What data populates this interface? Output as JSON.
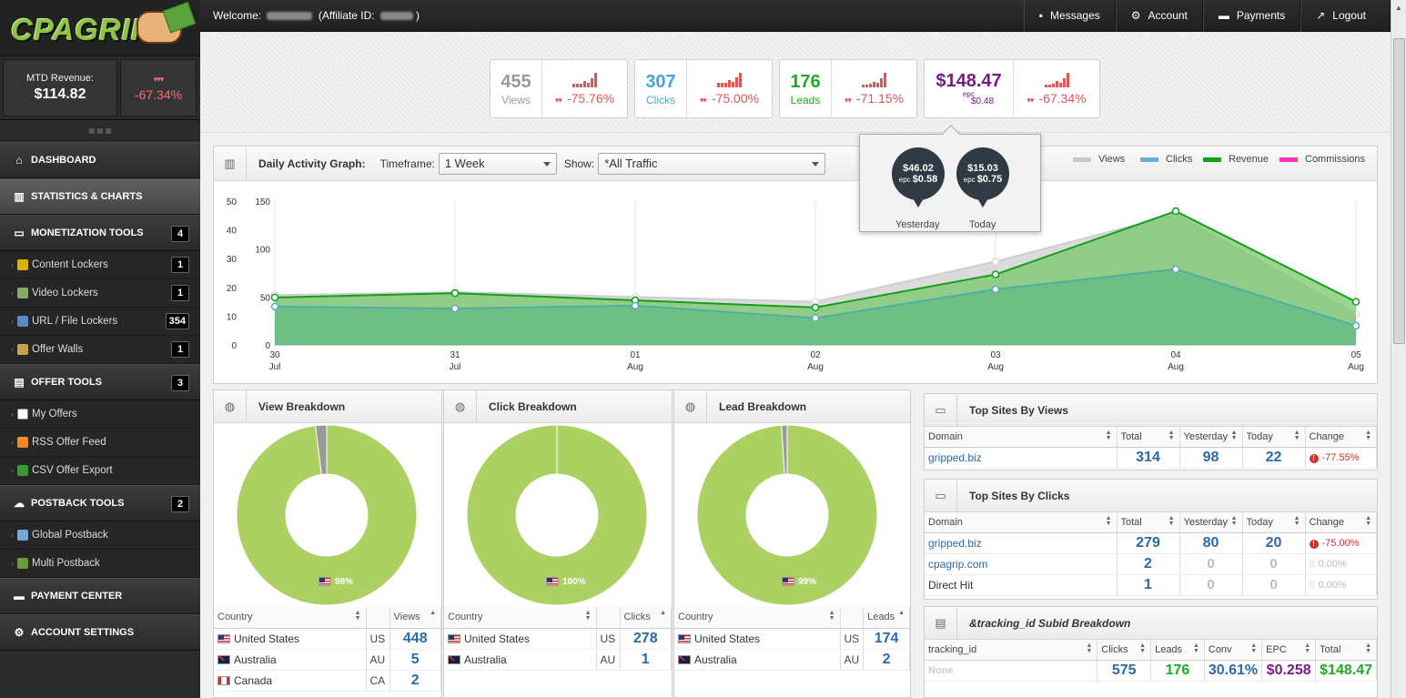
{
  "logo": {
    "text": "CPAGRIP"
  },
  "sidebar": {
    "mtd_label": "MTD Revenue:",
    "mtd_value": "$114.82",
    "mtd_change": "-67.34%",
    "sections": [
      {
        "label": "DASHBOARD",
        "icon": "home-icon"
      },
      {
        "label": "STATISTICS & CHARTS",
        "icon": "bar-chart-icon"
      },
      {
        "label": "MONETIZATION TOOLS",
        "icon": "monitor-icon",
        "badge": "4"
      },
      {
        "label": "OFFER TOOLS",
        "icon": "clipboard-icon",
        "badge": "3"
      },
      {
        "label": "POSTBACK TOOLS",
        "icon": "cloud-icon",
        "badge": "2"
      },
      {
        "label": "PAYMENT CENTER",
        "icon": "money-icon"
      },
      {
        "label": "ACCOUNT SETTINGS",
        "icon": "gear-icon"
      }
    ],
    "monetization_items": [
      {
        "label": "Content Lockers",
        "badge": "1"
      },
      {
        "label": "Video Lockers",
        "badge": "1"
      },
      {
        "label": "URL / File Lockers",
        "badge": "354"
      },
      {
        "label": "Offer Walls",
        "badge": "1"
      }
    ],
    "offer_items": [
      {
        "label": "My Offers"
      },
      {
        "label": "RSS Offer Feed"
      },
      {
        "label": "CSV Offer Export"
      }
    ],
    "postback_items": [
      {
        "label": "Global Postback"
      },
      {
        "label": "Multi Postback"
      }
    ]
  },
  "topbar": {
    "welcome_prefix": "Welcome:",
    "affiliate_label": "(Affiliate ID:",
    "buttons": [
      {
        "label": "Messages",
        "icon": "chat-icon"
      },
      {
        "label": "Account",
        "icon": "gear-icon"
      },
      {
        "label": "Payments",
        "icon": "money-icon"
      },
      {
        "label": "Logout",
        "icon": "logout-icon"
      }
    ]
  },
  "stats": [
    {
      "value": "455",
      "label": "Views",
      "change": "-75.76%",
      "color": "#999999"
    },
    {
      "value": "307",
      "label": "Clicks",
      "change": "-75.00%",
      "color": "#4aa3d8"
    },
    {
      "value": "176",
      "label": "Leads",
      "change": "-71.15%",
      "color": "#22aa22"
    },
    {
      "value": "$148.47",
      "label": "epc",
      "sub": "$0.48",
      "change": "-67.34%",
      "color": "#7a1a8a"
    }
  ],
  "popup": {
    "yesterday": {
      "value": "$46.02",
      "epc_label": "epc",
      "epc": "$0.58",
      "caption": "Yesterday"
    },
    "today": {
      "value": "$15.03",
      "epc_label": "epc",
      "epc": "$0.75",
      "caption": "Today"
    }
  },
  "graph": {
    "title": "Daily Activity Graph:",
    "timeframe_label": "Timeframe:",
    "timeframe_value": "1 Week",
    "show_label": "Show:",
    "show_value": "*All Traffic",
    "legend": [
      {
        "name": "Views",
        "color": "#c8c8c8"
      },
      {
        "name": "Clicks",
        "color": "#6aaed6"
      },
      {
        "name": "Revenue",
        "color": "#11a01a"
      },
      {
        "name": "Commissions",
        "color": "#ff33bb"
      }
    ]
  },
  "chart_data": {
    "type": "area",
    "x": [
      "30 Jul",
      "31 Jul",
      "01 Aug",
      "02 Aug",
      "03 Aug",
      "04 Aug",
      "05 Aug"
    ],
    "x_day": [
      "30",
      "31",
      "01",
      "02",
      "03",
      "04",
      "05"
    ],
    "x_month": [
      "Jul",
      "Jul",
      "Aug",
      "Aug",
      "Aug",
      "Aug",
      "Aug"
    ],
    "y_left_ticks": [
      0,
      10,
      20,
      30,
      40,
      50
    ],
    "y_right_ticks": [
      0,
      50,
      100,
      150
    ],
    "ylim_left": [
      0,
      50
    ],
    "ylim_right": [
      0,
      150
    ],
    "series": [
      {
        "name": "Views",
        "axis": "right",
        "values": [
          52,
          55,
          50,
          45,
          87,
          136,
          32
        ]
      },
      {
        "name": "Clicks",
        "axis": "right",
        "values": [
          40,
          38,
          41,
          28,
          58,
          79,
          20
        ]
      },
      {
        "name": "Revenue",
        "axis": "left",
        "values": [
          16.5,
          18,
          15.5,
          13,
          24.5,
          46.5,
          15
        ]
      }
    ]
  },
  "breakdowns": [
    {
      "title": "View Breakdown",
      "metric": "Views",
      "pct": 98,
      "pct_label": "98%",
      "rows": [
        {
          "country": "United States",
          "flag": "us",
          "code": "US",
          "value": "448"
        },
        {
          "country": "Australia",
          "flag": "au",
          "code": "AU",
          "value": "5"
        },
        {
          "country": "Canada",
          "flag": "ca",
          "code": "CA",
          "value": "2"
        }
      ]
    },
    {
      "title": "Click Breakdown",
      "metric": "Clicks",
      "pct": 100,
      "pct_label": "100%",
      "rows": [
        {
          "country": "United States",
          "flag": "us",
          "code": "US",
          "value": "278"
        },
        {
          "country": "Australia",
          "flag": "au",
          "code": "AU",
          "value": "1"
        }
      ]
    },
    {
      "title": "Lead Breakdown",
      "metric": "Leads",
      "pct": 99,
      "pct_label": "99%",
      "rows": [
        {
          "country": "United States",
          "flag": "us",
          "code": "US",
          "value": "174"
        },
        {
          "country": "Australia",
          "flag": "au",
          "code": "AU",
          "value": "2"
        }
      ]
    }
  ],
  "breakdown_country_header": "Country",
  "top_views": {
    "title": "Top Sites By Views",
    "headers": [
      "Domain",
      "Total",
      "Yesterday",
      "Today",
      "Change"
    ],
    "rows": [
      {
        "domain": "gripped.biz",
        "total": "314",
        "yesterday": "98",
        "today": "22",
        "change": "-77.55%"
      }
    ]
  },
  "top_clicks": {
    "title": "Top Sites By Clicks",
    "headers": [
      "Domain",
      "Total",
      "Yesterday",
      "Today",
      "Change"
    ],
    "rows": [
      {
        "domain": "gripped.biz",
        "total": "279",
        "yesterday": "80",
        "today": "20",
        "change": "-75.00%"
      },
      {
        "domain": "cpagrip.com",
        "total": "2",
        "yesterday": "0",
        "today": "0",
        "change": "0.00%"
      },
      {
        "domain": "Direct Hit",
        "total": "1",
        "yesterday": "0",
        "today": "0",
        "change": "0.00%"
      }
    ]
  },
  "subid": {
    "title": "&tracking_id Subid Breakdown",
    "headers": [
      "tracking_id",
      "Clicks",
      "Leads",
      "Conv",
      "EPC",
      "Total"
    ],
    "row": {
      "id": "None",
      "clicks": "575",
      "leads": "176",
      "conv": "30.61%",
      "epc": "$0.258",
      "total": "$148.47"
    }
  }
}
